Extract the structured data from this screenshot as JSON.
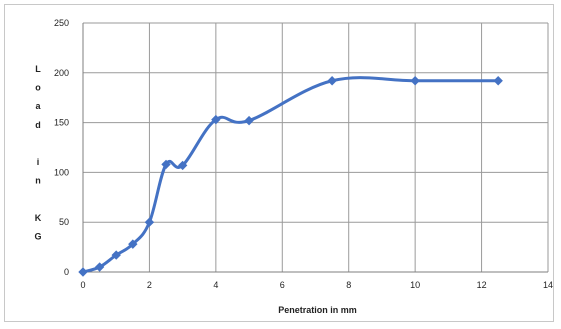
{
  "chart_data": {
    "type": "line",
    "title": "",
    "xlabel": "Penetration in mm",
    "ylabel": "Load in KG",
    "ylabel_chars": [
      "L",
      "o",
      "a",
      "d",
      "",
      "i",
      "n",
      "",
      "K",
      "G"
    ],
    "xlim": [
      0,
      14
    ],
    "ylim": [
      0,
      250
    ],
    "xticks": [
      0,
      2,
      4,
      6,
      8,
      10,
      12,
      14
    ],
    "yticks": [
      0,
      50,
      100,
      150,
      200,
      250
    ],
    "grid": true,
    "legend": "none",
    "series": [
      {
        "color": "#4472c4",
        "marker": "diamond",
        "x": [
          0,
          0.5,
          1,
          1.5,
          2,
          2.5,
          3,
          4,
          5,
          7.5,
          10,
          12.5
        ],
        "y": [
          0,
          5,
          17,
          28,
          50,
          108,
          107,
          153,
          152,
          192,
          192,
          192
        ]
      }
    ]
  }
}
